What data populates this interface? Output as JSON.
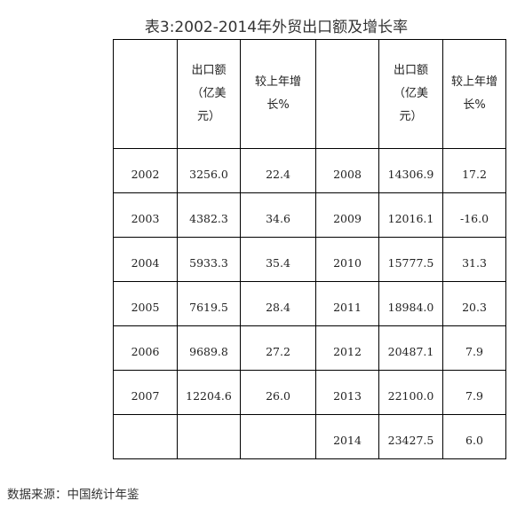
{
  "title": "表3:2002-2014年外贸出口额及增长率",
  "headers": {
    "blank": "",
    "export_left": "出口额（亿美元）",
    "growth_left": "较上年增长%",
    "blank2": "",
    "export_right": "出口额（亿美元）",
    "growth_right": "较上年增长%"
  },
  "rows": [
    {
      "year_a": "2002",
      "export_a": "3256.0",
      "growth_a": "22.4",
      "year_b": "2008",
      "export_b": "14306.9",
      "growth_b": "17.2"
    },
    {
      "year_a": "2003",
      "export_a": "4382.3",
      "growth_a": "34.6",
      "year_b": "2009",
      "export_b": "12016.1",
      "growth_b": "-16.0"
    },
    {
      "year_a": "2004",
      "export_a": "5933.3",
      "growth_a": "35.4",
      "year_b": "2010",
      "export_b": "15777.5",
      "growth_b": "31.3"
    },
    {
      "year_a": "2005",
      "export_a": "7619.5",
      "growth_a": "28.4",
      "year_b": "2011",
      "export_b": "18984.0",
      "growth_b": "20.3"
    },
    {
      "year_a": "2006",
      "export_a": "9689.8",
      "growth_a": "27.2",
      "year_b": "2012",
      "export_b": "20487.1",
      "growth_b": "7.9"
    },
    {
      "year_a": "2007",
      "export_a": "12204.6",
      "growth_a": "26.0",
      "year_b": "2013",
      "export_b": "22100.0",
      "growth_b": "7.9"
    },
    {
      "year_a": "",
      "export_a": "",
      "growth_a": "",
      "year_b": "2014",
      "export_b": "23427.5",
      "growth_b": "6.0"
    }
  ],
  "source": "数据来源：中国统计年鉴"
}
